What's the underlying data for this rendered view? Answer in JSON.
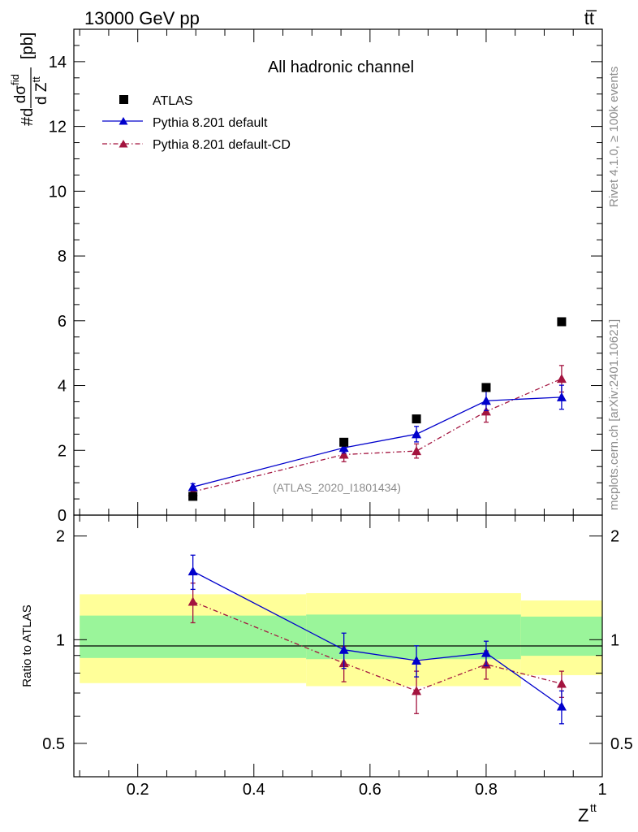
{
  "header": {
    "energy_label": "13000 GeV pp",
    "process_label": "tt̅"
  },
  "side_labels": {
    "rivet": "Rivet 4.1.0, ≥ 100k events",
    "mcplots": "mcplots.cern.ch [arXiv:2401.10621]"
  },
  "chart_data": [
    {
      "type": "scatter",
      "panel": "main",
      "title": "All hadronic channel",
      "ylabel": "#d dσ^fid / d Z^tt [pb]",
      "ylim": [
        0,
        15
      ],
      "yticks": [
        0,
        2,
        4,
        6,
        8,
        10,
        12,
        14
      ],
      "ytick_labels": [
        "0",
        "2",
        "4",
        "6",
        "8",
        "10",
        "12",
        "14"
      ],
      "xlim": [
        0.09,
        1.0
      ],
      "analysis_label": "(ATLAS_2020_I1801434)",
      "legend_position": "top-left",
      "series": [
        {
          "name": "ATLAS",
          "style": "black-square-markers",
          "color": "#000000",
          "x": [
            0.295,
            0.555,
            0.68,
            0.8,
            0.93
          ],
          "y": [
            0.58,
            2.25,
            2.97,
            3.94,
            5.97
          ]
        },
        {
          "name": "Pythia 8.201 default",
          "style": "blue-solid-triangles",
          "color": "#0000cc",
          "x": [
            0.295,
            0.555,
            0.68,
            0.8,
            0.93
          ],
          "y": [
            0.87,
            2.08,
            2.5,
            3.53,
            3.64
          ],
          "err": [
            0.1,
            0.16,
            0.24,
            0.3,
            0.37
          ]
        },
        {
          "name": "Pythia 8.201 default-CD",
          "style": "red-dashdot-triangles",
          "color": "#a3143f",
          "x": [
            0.295,
            0.555,
            0.68,
            0.8,
            0.93
          ],
          "y": [
            0.72,
            1.87,
            1.98,
            3.2,
            4.21
          ],
          "err": [
            0.09,
            0.22,
            0.22,
            0.33,
            0.41
          ]
        }
      ]
    },
    {
      "type": "scatter",
      "panel": "ratio",
      "ylabel": "Ratio to ATLAS",
      "yscale": "log",
      "ylim": [
        0.4,
        2.3
      ],
      "yticks": [
        0.5,
        1,
        2
      ],
      "ytick_labels": [
        "0.5",
        "1",
        "2"
      ],
      "xlabel": "Z^tt",
      "xlim": [
        0.09,
        1.0
      ],
      "xticks": [
        0.2,
        0.4,
        0.6,
        0.8,
        1.0
      ],
      "xtick_labels": [
        "0.2",
        "0.4",
        "0.6",
        "0.8",
        "1"
      ],
      "uncertainty_bands": {
        "x_edges": [
          0.1,
          0.49,
          0.74,
          0.86,
          1.0
        ],
        "inner_color": "#9af59a",
        "outer_color": "#ffff99",
        "inner_lo": [
          0.885,
          0.878,
          0.878,
          0.898,
          0.898
        ],
        "inner_hi": [
          1.175,
          1.183,
          1.183,
          1.167,
          1.167
        ],
        "outer_lo": [
          0.748,
          0.733,
          0.733,
          0.789,
          0.789
        ],
        "outer_hi": [
          1.355,
          1.365,
          1.365,
          1.3,
          1.3
        ]
      },
      "series": [
        {
          "name": "Pythia 8.201 default",
          "color": "#0000cc",
          "x": [
            0.295,
            0.555,
            0.68,
            0.8,
            0.93
          ],
          "y": [
            1.58,
            0.935,
            0.87,
            0.915,
            0.64
          ],
          "err": [
            0.18,
            0.11,
            0.09,
            0.075,
            0.07
          ]
        },
        {
          "name": "Pythia 8.201 default-CD",
          "color": "#a3143f",
          "x": [
            0.295,
            0.555,
            0.68,
            0.8,
            0.93
          ],
          "y": [
            1.29,
            0.855,
            0.71,
            0.848,
            0.745
          ],
          "err": [
            0.17,
            0.1,
            0.1,
            0.08,
            0.065
          ]
        }
      ]
    }
  ]
}
